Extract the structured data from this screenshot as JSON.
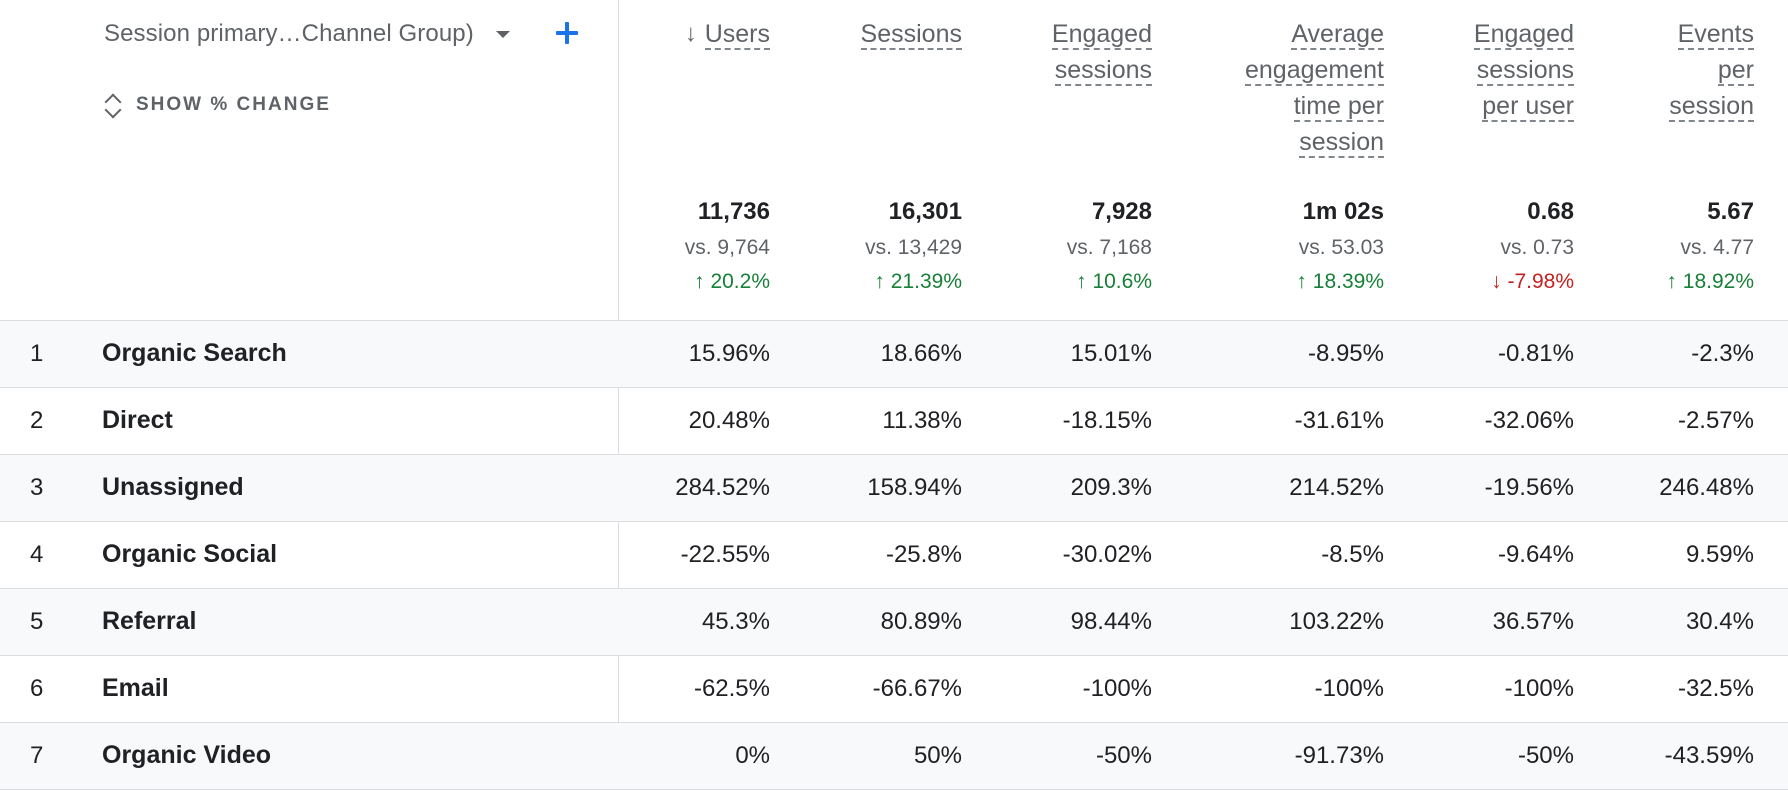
{
  "dimension": {
    "label": "Session primary…Channel Group)",
    "dropdown_icon": "caret-down-icon",
    "add_icon": "plus-icon"
  },
  "show_change": {
    "label": "SHOW % CHANGE",
    "icon": "unfold-icon"
  },
  "metrics": [
    {
      "key": "users",
      "lines": [
        "Users"
      ],
      "sorted": true,
      "sort_icon": "arrow-down-icon",
      "total": "11,736",
      "vs": "vs. 9,764",
      "delta": "20.2%",
      "delta_dir": "up"
    },
    {
      "key": "sessions",
      "lines": [
        "Sessions"
      ],
      "total": "16,301",
      "vs": "vs. 13,429",
      "delta": "21.39%",
      "delta_dir": "up"
    },
    {
      "key": "engaged_sessions",
      "lines": [
        "Engaged",
        "sessions"
      ],
      "total": "7,928",
      "vs": "vs. 7,168",
      "delta": "10.6%",
      "delta_dir": "up"
    },
    {
      "key": "avg_engagement_time",
      "lines": [
        "Average",
        "engagement",
        "time per",
        "session"
      ],
      "total": "1m 02s",
      "vs": "vs. 53.03",
      "delta": "18.39%",
      "delta_dir": "up"
    },
    {
      "key": "engaged_sessions_per_user",
      "lines": [
        "Engaged",
        "sessions",
        "per user"
      ],
      "total": "0.68",
      "vs": "vs. 0.73",
      "delta": "-7.98%",
      "delta_dir": "down"
    },
    {
      "key": "events_per_session",
      "lines": [
        "Events",
        "per",
        "session"
      ],
      "total": "5.67",
      "vs": "vs. 4.77",
      "delta": "18.92%",
      "delta_dir": "up"
    }
  ],
  "colors": {
    "positive": "#188038",
    "negative": "#c5221f",
    "accent": "#1a73e8"
  },
  "rows": [
    {
      "num": "1",
      "label": "Organic Search",
      "values": [
        "15.96%",
        "18.66%",
        "15.01%",
        "-8.95%",
        "-0.81%",
        "-2.3%"
      ]
    },
    {
      "num": "2",
      "label": "Direct",
      "values": [
        "20.48%",
        "11.38%",
        "-18.15%",
        "-31.61%",
        "-32.06%",
        "-2.57%"
      ]
    },
    {
      "num": "3",
      "label": "Unassigned",
      "values": [
        "284.52%",
        "158.94%",
        "209.3%",
        "214.52%",
        "-19.56%",
        "246.48%"
      ]
    },
    {
      "num": "4",
      "label": "Organic Social",
      "values": [
        "-22.55%",
        "-25.8%",
        "-30.02%",
        "-8.5%",
        "-9.64%",
        "9.59%"
      ]
    },
    {
      "num": "5",
      "label": "Referral",
      "values": [
        "45.3%",
        "80.89%",
        "98.44%",
        "103.22%",
        "36.57%",
        "30.4%"
      ]
    },
    {
      "num": "6",
      "label": "Email",
      "values": [
        "-62.5%",
        "-66.67%",
        "-100%",
        "-100%",
        "-100%",
        "-32.5%"
      ]
    },
    {
      "num": "7",
      "label": "Organic Video",
      "values": [
        "0%",
        "50%",
        "-50%",
        "-91.73%",
        "-50%",
        "-43.59%"
      ]
    }
  ]
}
